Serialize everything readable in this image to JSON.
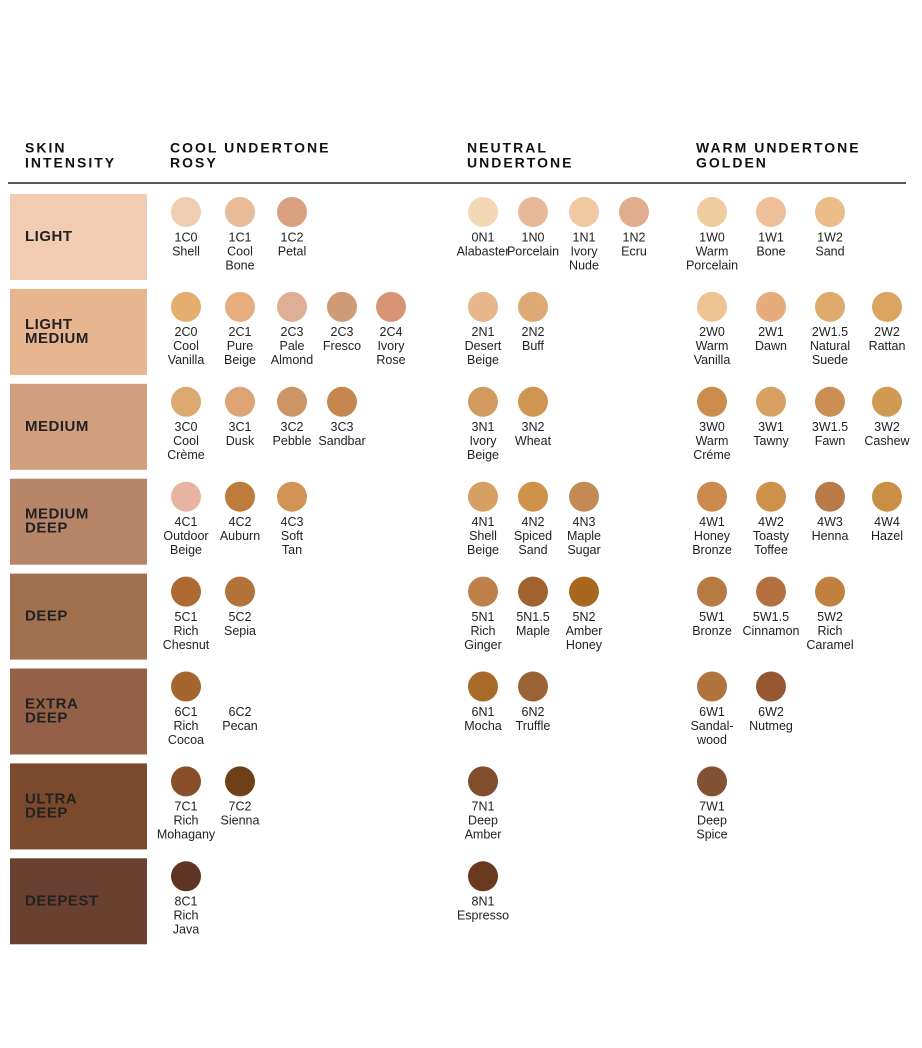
{
  "header": {
    "intensity": [
      "SKIN",
      "INTENSITY"
    ],
    "cool": [
      "COOL UNDERTONE",
      "ROSY"
    ],
    "neutral": [
      "NEUTRAL",
      "UNDERTONE"
    ],
    "warm": [
      "WARM UNDERTONE",
      "GOLDEN"
    ]
  },
  "rows": [
    {
      "label": [
        "LIGHT"
      ],
      "color": "#f2ccb2",
      "text_color": "#222",
      "cool": [
        {
          "code": "1C0",
          "name": [
            "Shell"
          ],
          "color": "#f0cdb0"
        },
        {
          "code": "1C1",
          "name": [
            "Cool",
            "Bone"
          ],
          "color": "#e9bc9a"
        },
        {
          "code": "1C2",
          "name": [
            "Petal"
          ],
          "color": "#d9a07f"
        }
      ],
      "neutral": [
        {
          "code": "0N1",
          "name": [
            "Alabaster"
          ],
          "color": "#f3d7b5"
        },
        {
          "code": "1N0",
          "name": [
            "Porcelain"
          ],
          "color": "#e8b999"
        },
        {
          "code": "1N1",
          "name": [
            "Ivory",
            "Nude"
          ],
          "color": "#f0c9a0"
        },
        {
          "code": "1N2",
          "name": [
            "Ecru"
          ],
          "color": "#e0ad8f"
        }
      ],
      "warm": [
        {
          "code": "1W0",
          "name": [
            "Warm",
            "Porcelain"
          ],
          "color": "#f0cda0"
        },
        {
          "code": "1W1",
          "name": [
            "Bone"
          ],
          "color": "#eec09a"
        },
        {
          "code": "1W2",
          "name": [
            "Sand"
          ],
          "color": "#ebbd88"
        }
      ]
    },
    {
      "label": [
        "LIGHT",
        "MEDIUM"
      ],
      "color": "#e8b591",
      "text_color": "#222",
      "cool": [
        {
          "code": "2C0",
          "name": [
            "Cool",
            "Vanilla"
          ],
          "color": "#e4ae6f"
        },
        {
          "code": "2C1",
          "name": [
            "Pure",
            "Beige"
          ],
          "color": "#e5ad80"
        },
        {
          "code": "2C3",
          "name": [
            "Pale",
            "Almond"
          ],
          "color": "#dfae96"
        },
        {
          "code": "2C3",
          "name": [
            "Fresco"
          ],
          "color": "#cf9a76"
        },
        {
          "code": "2C4",
          "name": [
            "Ivory",
            "Rose"
          ],
          "color": "#d79575"
        }
      ],
      "neutral": [
        {
          "code": "2N1",
          "name": [
            "Desert",
            "Beige"
          ],
          "color": "#e7b68a"
        },
        {
          "code": "2N2",
          "name": [
            "Buff"
          ],
          "color": "#dcaa72"
        }
      ],
      "warm": [
        {
          "code": "2W0",
          "name": [
            "Warm",
            "Vanilla"
          ],
          "color": "#eec394"
        },
        {
          "code": "2W1",
          "name": [
            "Dawn"
          ],
          "color": "#e6ac7c"
        },
        {
          "code": "2W1.5",
          "name": [
            "Natural",
            "Suede"
          ],
          "color": "#deaa6e"
        },
        {
          "code": "2W2",
          "name": [
            "Rattan"
          ],
          "color": "#dca461"
        }
      ]
    },
    {
      "label": [
        "MEDIUM"
      ],
      "color": "#d19f7d",
      "text_color": "#222",
      "cool": [
        {
          "code": "3C0",
          "name": [
            "Cool",
            "Crème"
          ],
          "color": "#dca970"
        },
        {
          "code": "3C1",
          "name": [
            "Dusk"
          ],
          "color": "#dea474"
        },
        {
          "code": "3C2",
          "name": [
            "Pebble"
          ],
          "color": "#cd9466"
        },
        {
          "code": "3C3",
          "name": [
            "Sandbar"
          ],
          "color": "#c6864f"
        }
      ],
      "neutral": [
        {
          "code": "3N1",
          "name": [
            "Ivory",
            "Beige"
          ],
          "color": "#d39a5f"
        },
        {
          "code": "3N2",
          "name": [
            "Wheat"
          ],
          "color": "#cf9552"
        }
      ],
      "warm": [
        {
          "code": "3W0",
          "name": [
            "Warm",
            "Créme"
          ],
          "color": "#cc8c4e"
        },
        {
          "code": "3W1",
          "name": [
            "Tawny"
          ],
          "color": "#d9a063"
        },
        {
          "code": "3W1.5",
          "name": [
            "Fawn"
          ],
          "color": "#cc8e55"
        },
        {
          "code": "3W2",
          "name": [
            "Cashew"
          ],
          "color": "#d09a52"
        }
      ]
    },
    {
      "label": [
        "MEDIUM",
        "DEEP"
      ],
      "color": "#b78669",
      "text_color": "#222",
      "cool": [
        {
          "code": "4C1",
          "name": [
            "Outdoor",
            "Beige"
          ],
          "color": "#e7b4a1"
        },
        {
          "code": "4C2",
          "name": [
            "Auburn"
          ],
          "color": "#bf7b3c"
        },
        {
          "code": "4C3",
          "name": [
            "Soft",
            "Tan"
          ],
          "color": "#d29455"
        }
      ],
      "neutral": [
        {
          "code": "4N1",
          "name": [
            "Shell",
            "Beige"
          ],
          "color": "#d6a062"
        },
        {
          "code": "4N2",
          "name": [
            "Spiced",
            "Sand"
          ],
          "color": "#cf9249"
        },
        {
          "code": "4N3",
          "name": [
            "Maple",
            "Sugar"
          ],
          "color": "#c48a55"
        }
      ],
      "warm": [
        {
          "code": "4W1",
          "name": [
            "Honey",
            "Bronze"
          ],
          "color": "#cc8a4c"
        },
        {
          "code": "4W2",
          "name": [
            "Toasty",
            "Toffee"
          ],
          "color": "#cd9149"
        },
        {
          "code": "4W3",
          "name": [
            "Henna"
          ],
          "color": "#b97a47"
        },
        {
          "code": "4W4",
          "name": [
            "Hazel"
          ],
          "color": "#c98f44"
        }
      ]
    },
    {
      "label": [
        "DEEP"
      ],
      "color": "#a0704f",
      "text_color": "#fff",
      "cool": [
        {
          "code": "5C1",
          "name": [
            "Rich",
            "Chesnut"
          ],
          "color": "#ad6a33"
        },
        {
          "code": "5C2",
          "name": [
            "Sepia"
          ],
          "color": "#b4723a"
        }
      ],
      "neutral": [
        {
          "code": "5N1",
          "name": [
            "Rich",
            "Ginger"
          ],
          "color": "#c0804a"
        },
        {
          "code": "5N1.5",
          "name": [
            "Maple"
          ],
          "color": "#a0622f"
        },
        {
          "code": "5N2",
          "name": [
            "Amber",
            "Honey"
          ],
          "color": "#a8671e"
        }
      ],
      "warm": [
        {
          "code": "5W1",
          "name": [
            "Bronze"
          ],
          "color": "#b87a43"
        },
        {
          "code": "5W1.5",
          "name": [
            "Cinnamon"
          ],
          "color": "#b4713f"
        },
        {
          "code": "5W2",
          "name": [
            "Rich",
            "Caramel"
          ],
          "color": "#c2803f"
        }
      ]
    },
    {
      "label": [
        "EXTRA",
        "DEEP"
      ],
      "color": "#946148",
      "text_color": "#fff",
      "cool": [
        {
          "code": "6C1",
          "name": [
            "Rich",
            "Cocoa"
          ],
          "color": "#a4662e"
        },
        {
          "code": "6C2",
          "name": [
            "Pecan"
          ]
        }
      ],
      "neutral": [
        {
          "code": "6N1",
          "name": [
            "Mocha"
          ],
          "color": "#a86a2a"
        },
        {
          "code": "6N2",
          "name": [
            "Truffle"
          ],
          "color": "#9a6336"
        }
      ],
      "warm": [
        {
          "code": "6W1",
          "name": [
            "Sandal-",
            "wood"
          ],
          "color": "#b0733e"
        },
        {
          "code": "6W2",
          "name": [
            "Nutmeg"
          ],
          "color": "#955833"
        }
      ]
    },
    {
      "label": [
        "ULTRA",
        "DEEP"
      ],
      "color": "#7b4a2c",
      "text_color": "#fff",
      "cool": [
        {
          "code": "7C1",
          "name": [
            "Rich",
            "Mohagany"
          ],
          "color": "#87502a"
        },
        {
          "code": "7C2",
          "name": [
            "Sienna"
          ],
          "color": "#6e4017"
        }
      ],
      "neutral": [
        {
          "code": "7N1",
          "name": [
            "Deep",
            "Amber"
          ],
          "color": "#804e2d"
        }
      ],
      "warm": [
        {
          "code": "7W1",
          "name": [
            "Deep",
            "Spice"
          ],
          "color": "#835234"
        }
      ]
    },
    {
      "label": [
        "DEEPEST"
      ],
      "color": "#6a4130",
      "text_color": "#fff",
      "cool": [
        {
          "code": "8C1",
          "name": [
            "Rich",
            "Java"
          ],
          "color": "#5e3424"
        }
      ],
      "neutral": [
        {
          "code": "8N1",
          "name": [
            "Espresso"
          ],
          "color": "#6a3a20"
        }
      ],
      "warm": []
    }
  ]
}
